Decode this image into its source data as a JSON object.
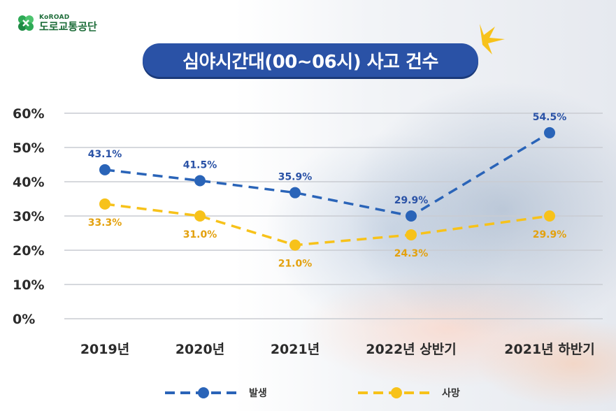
{
  "logo": {
    "en": "KoROAD",
    "ko": "도로교통공단"
  },
  "title": "심야시간대(00~06시) 사고  건수",
  "chart_data": {
    "type": "line",
    "title": "심야시간대(00~06시) 사고  건수",
    "categories": [
      "2019년",
      "2020년",
      "2021년",
      "2022년 상반기",
      "2021년 하반기"
    ],
    "y_ticks": [
      "0%",
      "10%",
      "20%",
      "30%",
      "40%",
      "50%",
      "60%"
    ],
    "ylim": [
      0,
      60
    ],
    "series": [
      {
        "name": "발생",
        "values": [
          43.1,
          41.5,
          35.9,
          29.9,
          54.5
        ],
        "labels": [
          "43.1%",
          "41.5%",
          "35.9%",
          "29.9%",
          "54.5%"
        ],
        "plot_values": [
          43.5,
          40.3,
          36.8,
          30.0,
          54.3
        ],
        "color": "#2a64b8",
        "label_color": "#2a52a6"
      },
      {
        "name": "사망",
        "values": [
          33.3,
          31.0,
          21.0,
          24.3,
          29.9
        ],
        "labels": [
          "33.3%",
          "31.0%",
          "21.0%",
          "24.3%",
          "29.9%"
        ],
        "plot_values": [
          33.5,
          30.0,
          21.5,
          24.5,
          30.0
        ],
        "color": "#f7c21a",
        "label_color": "#e3a10e"
      }
    ],
    "legend": {
      "position": "bottom"
    }
  }
}
